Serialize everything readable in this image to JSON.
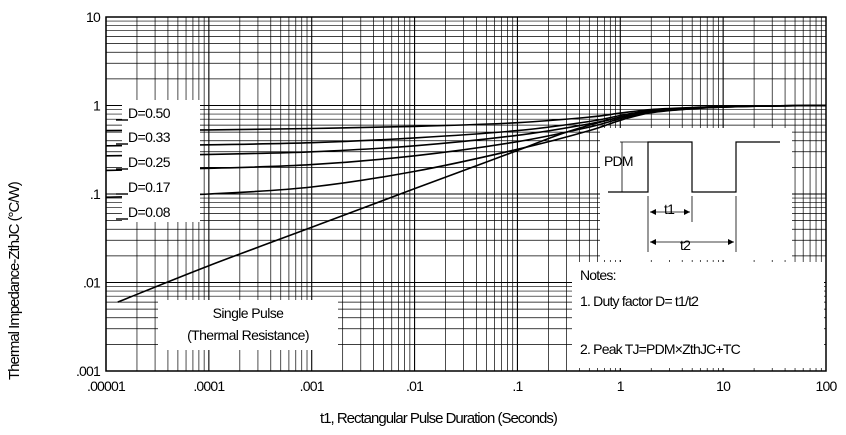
{
  "chart_data": {
    "type": "line",
    "title": "",
    "xlabel": "t1, Rectangular Pulse Duration (Seconds)",
    "ylabel": "Thermal Impedance-ZthJC (°C/W)",
    "xscale": "log",
    "yscale": "log",
    "xlim": [
      1e-05,
      100
    ],
    "ylim": [
      0.001,
      10
    ],
    "x_tick_labels": [
      ".00001",
      ".0001",
      ".001",
      ".01",
      ".1",
      "1",
      "10",
      "100"
    ],
    "y_tick_labels": [
      ".001",
      ".01",
      ".1",
      "1",
      "10"
    ],
    "grid": true,
    "series": [
      {
        "name": "D=0.50",
        "x": [
          1e-05,
          0.0001,
          0.001,
          0.01,
          0.1,
          0.5,
          1,
          2,
          5,
          10,
          30,
          100
        ],
        "y": [
          0.52,
          0.53,
          0.55,
          0.58,
          0.64,
          0.74,
          0.82,
          0.9,
          0.95,
          0.97,
          0.99,
          1.0
        ]
      },
      {
        "name": "D=0.33",
        "x": [
          1e-05,
          0.0001,
          0.001,
          0.01,
          0.1,
          0.5,
          1,
          2,
          5,
          10,
          30,
          100
        ],
        "y": [
          0.35,
          0.36,
          0.38,
          0.43,
          0.52,
          0.66,
          0.77,
          0.88,
          0.94,
          0.97,
          0.99,
          1.0
        ]
      },
      {
        "name": "D=0.25",
        "x": [
          1e-05,
          0.0001,
          0.001,
          0.01,
          0.1,
          0.5,
          1,
          2,
          5,
          10,
          30,
          100
        ],
        "y": [
          0.27,
          0.28,
          0.3,
          0.35,
          0.46,
          0.62,
          0.74,
          0.87,
          0.94,
          0.97,
          0.99,
          1.0
        ]
      },
      {
        "name": "D=0.17",
        "x": [
          1e-05,
          0.0001,
          0.001,
          0.01,
          0.1,
          0.5,
          1,
          2,
          5,
          10,
          30,
          100
        ],
        "y": [
          0.185,
          0.195,
          0.215,
          0.27,
          0.39,
          0.57,
          0.71,
          0.85,
          0.93,
          0.96,
          0.99,
          1.0
        ]
      },
      {
        "name": "D=0.08",
        "x": [
          1e-05,
          0.0001,
          0.001,
          0.01,
          0.1,
          0.5,
          1,
          2,
          5,
          10,
          30,
          100
        ],
        "y": [
          0.092,
          0.1,
          0.12,
          0.18,
          0.32,
          0.52,
          0.68,
          0.83,
          0.92,
          0.96,
          0.99,
          1.0
        ]
      },
      {
        "name": "Single Pulse (Thermal Resistance)",
        "x": [
          1.3e-05,
          0.0001,
          0.001,
          0.01,
          0.05,
          0.1,
          0.3,
          1,
          2,
          5,
          10,
          30,
          100
        ],
        "y": [
          0.006,
          0.0155,
          0.042,
          0.115,
          0.23,
          0.31,
          0.5,
          0.74,
          0.84,
          0.92,
          0.96,
          0.99,
          1.0
        ]
      }
    ],
    "annotations": {
      "single_pulse": [
        "Single Pulse",
        "(Thermal Resistance)"
      ],
      "notes_title": "Notes:",
      "note1": "1. Duty factor D= t1/t2",
      "note2": "2. Peak TJ=PDM×ZthJC+TC",
      "pdm": "PDM",
      "t1": "t1",
      "t2": "t2"
    }
  }
}
